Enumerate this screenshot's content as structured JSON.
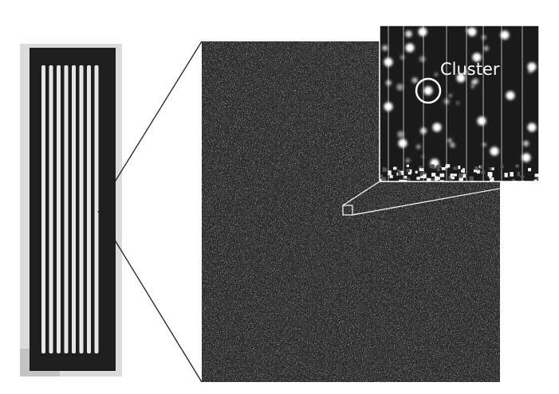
{
  "figure": {
    "inset_label": "Cluster",
    "colors": {
      "background": "#ffffff",
      "flowcell_frame": "#1e1e1e",
      "lane": "#e6e6e6",
      "field_dark": "#2b2b2b",
      "inset_dark": "#1a1a1a",
      "lane_line": "#9a9a9a",
      "cluster": "#ffffff",
      "label": "#ffffff",
      "callout_line": "#222222"
    },
    "flowcell": {
      "lane_count": 8
    }
  }
}
